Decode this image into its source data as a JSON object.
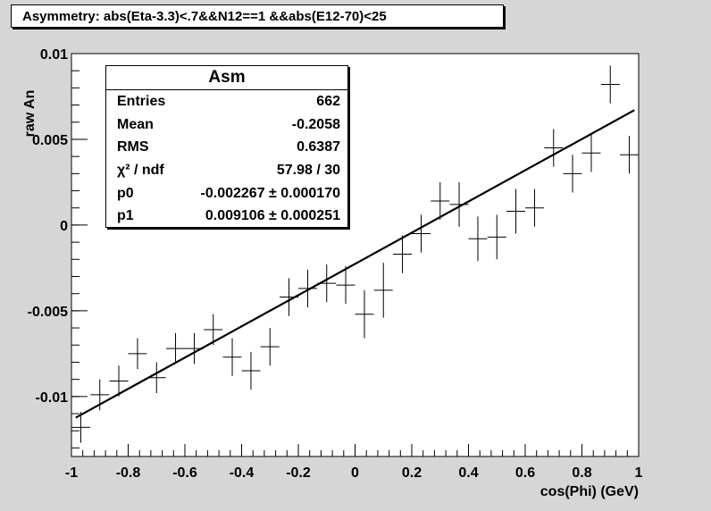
{
  "title": "Asymmetry: abs(Eta-3.3)<.7&&N12==1 &&abs(E12-70)<25",
  "stats": {
    "header": "Asm",
    "rows": [
      {
        "label": "Entries",
        "value": "662"
      },
      {
        "label": "Mean",
        "value": "-0.2058"
      },
      {
        "label": "RMS",
        "value": "0.6387"
      },
      {
        "label": "χ² / ndf",
        "value": "57.98 / 30"
      },
      {
        "label": "p0",
        "value": "-0.002267 ± 0.000170"
      },
      {
        "label": "p1",
        "value": "0.009106 ± 0.000251"
      }
    ]
  },
  "chart_data": {
    "type": "scatter",
    "title": "Asymmetry: abs(Eta-3.3)<.7&&N12==1 &&abs(E12-70)<25",
    "xlabel": "cos(Phi) (GeV)",
    "ylabel": "raw  An",
    "xlim": [
      -1,
      1
    ],
    "ylim": [
      -0.0135,
      0.01
    ],
    "xticks": [
      "-1",
      "-0.8",
      "-0.6",
      "-0.4",
      "-0.2",
      "0",
      "0.2",
      "0.4",
      "0.6",
      "0.8",
      "1"
    ],
    "yticks": [
      "-0.01",
      "-0.005",
      "0",
      "0.005",
      "0.01"
    ],
    "series": [
      {
        "x": [
          -0.967,
          -0.9,
          -0.833,
          -0.767,
          -0.7,
          -0.633,
          -0.567,
          -0.5,
          -0.433,
          -0.367,
          -0.3,
          -0.233,
          -0.167,
          -0.1,
          -0.033,
          0.033,
          0.1,
          0.167,
          0.233,
          0.3,
          0.367,
          0.433,
          0.5,
          0.567,
          0.633,
          0.7,
          0.767,
          0.833,
          0.9,
          0.967
        ],
        "y": [
          -0.0118,
          -0.0099,
          -0.0091,
          -0.0075,
          -0.0089,
          -0.0072,
          -0.0072,
          -0.0061,
          -0.0077,
          -0.0085,
          -0.0071,
          -0.0042,
          -0.0037,
          -0.0034,
          -0.0035,
          -0.0052,
          -0.0038,
          -0.0017,
          -0.0005,
          0.0014,
          0.0012,
          -0.0008,
          -0.0007,
          0.0008,
          0.001,
          0.0045,
          0.003,
          0.0042,
          0.0082,
          0.0041
        ],
        "yerr": [
          0.0009,
          0.0009,
          0.0009,
          0.0009,
          0.0009,
          0.0009,
          0.0009,
          0.0009,
          0.0011,
          0.0011,
          0.0011,
          0.0011,
          0.0011,
          0.0011,
          0.0011,
          0.0014,
          0.0016,
          0.0011,
          0.0011,
          0.0011,
          0.0013,
          0.0013,
          0.0013,
          0.0013,
          0.0011,
          0.0011,
          0.0011,
          0.0011,
          0.0011,
          0.0011
        ],
        "xerr": 0.033
      }
    ],
    "fit": {
      "p0": -0.002267,
      "p1": 0.009106
    },
    "grid": false,
    "legend": "top-left"
  }
}
